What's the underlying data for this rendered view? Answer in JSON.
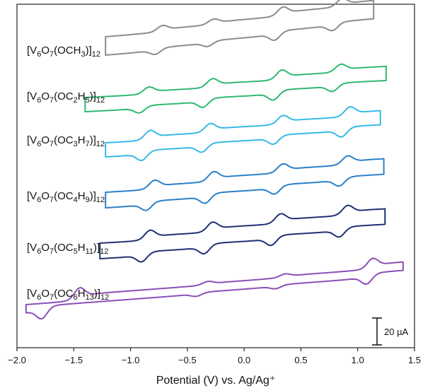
{
  "chart_data": {
    "type": "line",
    "title": "",
    "xlabel": "Potential (V) vs. Ag/Ag⁺",
    "ylabel": "",
    "xlim": [
      -2.0,
      1.5
    ],
    "xticks": [
      "−2.0",
      "−1.5",
      "−1.0",
      "−0.5",
      "0.0",
      "0.5",
      "1.0",
      "1.5"
    ],
    "grid": false,
    "legend": "none",
    "scale_bar": {
      "label": "20 µA",
      "value_uA": 20
    },
    "series": [
      {
        "label_parts": [
          [
            "V",
            ""
          ],
          [
            "6",
            "sub"
          ],
          [
            "O",
            ""
          ],
          [
            "7",
            "sub"
          ],
          [
            "(OCH",
            ""
          ],
          [
            "3",
            "sub"
          ],
          [
            ")",
            ""
          ],
          [
            "12",
            "sub"
          ]
        ],
        "color": "#8c8c8c",
        "x_start": -1.22,
        "x_end": 1.14,
        "peaks": [
          [
            -0.78,
            -0.72
          ],
          [
            -0.32,
            -0.27
          ],
          [
            0.27,
            0.34
          ],
          [
            0.78,
            0.86
          ]
        ]
      },
      {
        "label_parts": [
          [
            "V",
            ""
          ],
          [
            "6",
            "sub"
          ],
          [
            "O",
            ""
          ],
          [
            "7",
            "sub"
          ],
          [
            "(OC",
            ""
          ],
          [
            "2",
            "sub"
          ],
          [
            "H",
            ""
          ],
          [
            "5",
            "sub"
          ],
          [
            ")",
            ""
          ],
          [
            "12",
            "sub"
          ]
        ],
        "color": "#2fb872",
        "x_start": -1.4,
        "x_end": 1.25,
        "peaks": [
          [
            -0.92,
            -0.84
          ],
          [
            -0.36,
            -0.28
          ],
          [
            0.26,
            0.33
          ],
          [
            0.78,
            0.85
          ]
        ]
      },
      {
        "label_parts": [
          [
            "V",
            ""
          ],
          [
            "6",
            "sub"
          ],
          [
            "O",
            ""
          ],
          [
            "7",
            "sub"
          ],
          [
            "(OC",
            ""
          ],
          [
            "3",
            "sub"
          ],
          [
            "H",
            ""
          ],
          [
            "7",
            "sub"
          ],
          [
            ")",
            ""
          ],
          [
            "12",
            "sub"
          ]
        ],
        "color": "#36b9e6",
        "x_start": -1.22,
        "x_end": 1.2,
        "peaks": [
          [
            -0.9,
            -0.83
          ],
          [
            -0.37,
            -0.3
          ],
          [
            0.26,
            0.34
          ],
          [
            0.86,
            0.93
          ]
        ]
      },
      {
        "label_parts": [
          [
            "V",
            ""
          ],
          [
            "6",
            "sub"
          ],
          [
            "O",
            ""
          ],
          [
            "7",
            "sub"
          ],
          [
            "(OC",
            ""
          ],
          [
            "4",
            "sub"
          ],
          [
            "H",
            ""
          ],
          [
            "9",
            "sub"
          ],
          [
            ")",
            ""
          ],
          [
            "12",
            "sub"
          ]
        ],
        "color": "#2a7fc9",
        "x_start": -1.22,
        "x_end": 1.23,
        "peaks": [
          [
            -0.86,
            -0.79
          ],
          [
            -0.34,
            -0.27
          ],
          [
            0.27,
            0.34
          ],
          [
            0.84,
            0.91
          ]
        ]
      },
      {
        "label_parts": [
          [
            "V",
            ""
          ],
          [
            "6",
            "sub"
          ],
          [
            "O",
            ""
          ],
          [
            "7",
            "sub"
          ],
          [
            "(OC",
            ""
          ],
          [
            "5",
            "sub"
          ],
          [
            "H",
            ""
          ],
          [
            "11",
            "sub"
          ],
          [
            ")",
            ""
          ],
          [
            "12",
            "sub"
          ]
        ],
        "color": "#1f2f73",
        "x_start": -1.27,
        "x_end": 1.24,
        "peaks": [
          [
            -0.9,
            -0.83
          ],
          [
            -0.35,
            -0.28
          ],
          [
            0.24,
            0.32
          ],
          [
            0.84,
            0.91
          ]
        ]
      },
      {
        "label_parts": [
          [
            "V",
            ""
          ],
          [
            "6",
            "sub"
          ],
          [
            "O",
            ""
          ],
          [
            "7",
            "sub"
          ],
          [
            "(OC",
            ""
          ],
          [
            "6",
            "sub"
          ],
          [
            "H",
            ""
          ],
          [
            "13",
            "sub"
          ],
          [
            ")",
            ""
          ],
          [
            "12",
            "sub"
          ]
        ],
        "color": "#8b4fb8",
        "x_start": -1.92,
        "x_end": 1.4,
        "peaks": [
          [
            -1.78,
            -1.45
          ],
          [
            -0.42,
            -0.32
          ],
          [
            0.28,
            0.36
          ],
          [
            1.08,
            1.13
          ]
        ]
      }
    ]
  }
}
